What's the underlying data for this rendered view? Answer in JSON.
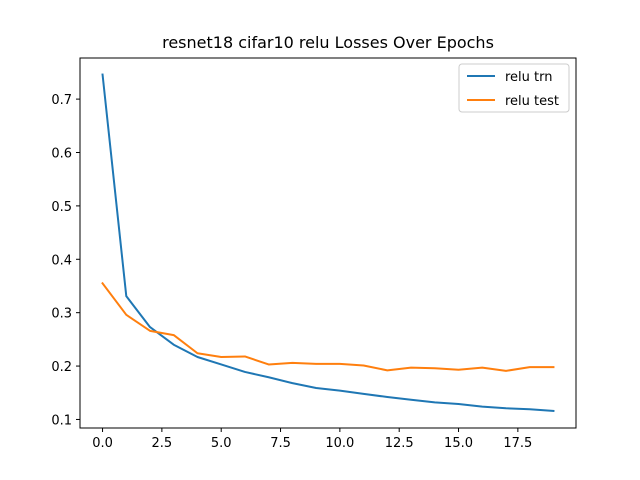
{
  "chart_data": {
    "type": "line",
    "title": "resnet18 cifar10 relu Losses Over Epochs",
    "xlabel": "",
    "ylabel": "",
    "xlim": [
      -0.95,
      19.95
    ],
    "ylim": [
      0.084,
      0.777
    ],
    "x_ticks": [
      0.0,
      2.5,
      5.0,
      7.5,
      10.0,
      12.5,
      15.0,
      17.5
    ],
    "x_tick_labels": [
      "0.0",
      "2.5",
      "5.0",
      "7.5",
      "10.0",
      "12.5",
      "15.0",
      "17.5"
    ],
    "y_ticks": [
      0.1,
      0.2,
      0.3,
      0.4,
      0.5,
      0.6,
      0.7
    ],
    "y_tick_labels": [
      "0.1",
      "0.2",
      "0.3",
      "0.4",
      "0.5",
      "0.6",
      "0.7"
    ],
    "grid": false,
    "legend_position": "top-right",
    "x": [
      0,
      1,
      2,
      3,
      4,
      5,
      6,
      7,
      8,
      9,
      10,
      11,
      12,
      13,
      14,
      15,
      16,
      17,
      18,
      19
    ],
    "series": [
      {
        "name": "relu trn",
        "color": "#1f77b4",
        "values": [
          0.746,
          0.331,
          0.273,
          0.24,
          0.217,
          0.203,
          0.189,
          0.179,
          0.168,
          0.159,
          0.154,
          0.148,
          0.142,
          0.137,
          0.132,
          0.129,
          0.124,
          0.121,
          0.119,
          0.116
        ]
      },
      {
        "name": "relu test",
        "color": "#ff7f0e",
        "values": [
          0.355,
          0.296,
          0.266,
          0.258,
          0.224,
          0.217,
          0.218,
          0.203,
          0.206,
          0.204,
          0.204,
          0.201,
          0.192,
          0.197,
          0.196,
          0.193,
          0.197,
          0.191,
          0.198,
          0.198
        ]
      }
    ]
  }
}
